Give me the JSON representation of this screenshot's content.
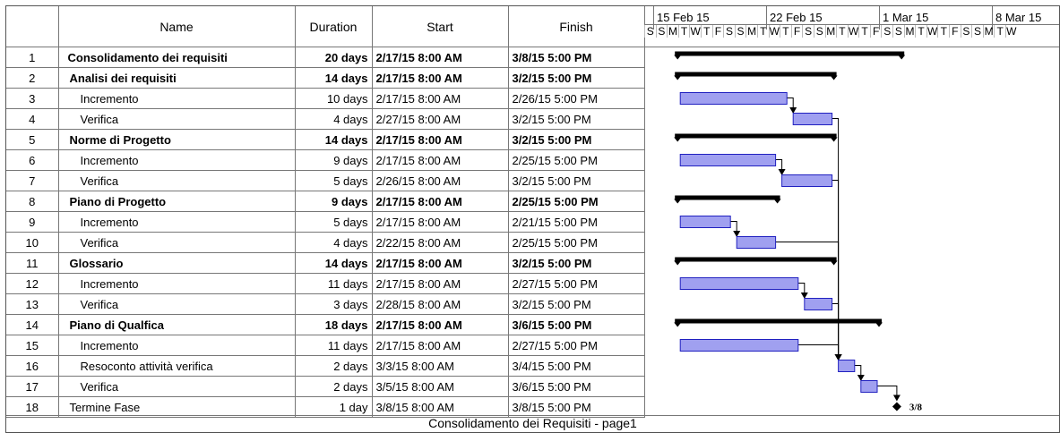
{
  "columns": {
    "name": "Name",
    "duration": "Duration",
    "start": "Start",
    "finish": "Finish"
  },
  "timescale": {
    "weeks": [
      "15 Feb 15",
      "22 Feb 15",
      "1 Mar 15",
      "8 Mar 15"
    ],
    "day_letters": [
      "S",
      "S",
      "M",
      "T",
      "W",
      "T",
      "F",
      "S",
      "S",
      "M",
      "T",
      "W",
      "T",
      "F",
      "S",
      "S",
      "M",
      "T",
      "W",
      "T",
      "F",
      "S",
      "S",
      "M",
      "T",
      "W",
      "T",
      "F",
      "S",
      "S",
      "M",
      "T",
      "W"
    ]
  },
  "tasks": [
    {
      "id": "1",
      "name": "Consolidamento dei requisiti",
      "duration": "20 days",
      "start": "2/17/15 8:00 AM",
      "finish": "3/8/15 5:00 PM",
      "level": 0,
      "summary": true,
      "start_day": 2,
      "end_day": 21
    },
    {
      "id": "2",
      "name": "Analisi dei requisiti",
      "duration": "14 days",
      "start": "2/17/15 8:00 AM",
      "finish": "3/2/15 5:00 PM",
      "level": 1,
      "summary": true,
      "start_day": 2,
      "end_day": 15
    },
    {
      "id": "3",
      "name": "Incremento",
      "duration": "10 days",
      "start": "2/17/15 8:00 AM",
      "finish": "2/26/15 5:00 PM",
      "level": 2,
      "summary": false,
      "start_day": 2,
      "end_day": 11,
      "successor": "4"
    },
    {
      "id": "4",
      "name": "Verifica",
      "duration": "4 days",
      "start": "2/27/15 8:00 AM",
      "finish": "3/2/15 5:00 PM",
      "level": 2,
      "summary": false,
      "start_day": 12,
      "end_day": 15,
      "successor": "16"
    },
    {
      "id": "5",
      "name": "Norme di Progetto",
      "duration": "14 days",
      "start": "2/17/15 8:00 AM",
      "finish": "3/2/15 5:00 PM",
      "level": 1,
      "summary": true,
      "start_day": 2,
      "end_day": 15
    },
    {
      "id": "6",
      "name": "Incremento",
      "duration": "9 days",
      "start": "2/17/15 8:00 AM",
      "finish": "2/25/15 5:00 PM",
      "level": 2,
      "summary": false,
      "start_day": 2,
      "end_day": 10,
      "successor": "7"
    },
    {
      "id": "7",
      "name": "Verifica",
      "duration": "5 days",
      "start": "2/26/15 8:00 AM",
      "finish": "3/2/15 5:00 PM",
      "level": 2,
      "summary": false,
      "start_day": 11,
      "end_day": 15,
      "successor": "16"
    },
    {
      "id": "8",
      "name": "Piano di Progetto",
      "duration": "9 days",
      "start": "2/17/15 8:00 AM",
      "finish": "2/25/15 5:00 PM",
      "level": 1,
      "summary": true,
      "start_day": 2,
      "end_day": 10
    },
    {
      "id": "9",
      "name": "Incremento",
      "duration": "5 days",
      "start": "2/17/15 8:00 AM",
      "finish": "2/21/15 5:00 PM",
      "level": 2,
      "summary": false,
      "start_day": 2,
      "end_day": 6,
      "successor": "10"
    },
    {
      "id": "10",
      "name": "Verifica",
      "duration": "4 days",
      "start": "2/22/15 8:00 AM",
      "finish": "2/25/15 5:00 PM",
      "level": 2,
      "summary": false,
      "start_day": 7,
      "end_day": 10,
      "successor": "16"
    },
    {
      "id": "11",
      "name": "Glossario",
      "duration": "14 days",
      "start": "2/17/15 8:00 AM",
      "finish": "3/2/15 5:00 PM",
      "level": 1,
      "summary": true,
      "start_day": 2,
      "end_day": 15
    },
    {
      "id": "12",
      "name": "Incremento",
      "duration": "11 days",
      "start": "2/17/15 8:00 AM",
      "finish": "2/27/15 5:00 PM",
      "level": 2,
      "summary": false,
      "start_day": 2,
      "end_day": 12,
      "successor": "13"
    },
    {
      "id": "13",
      "name": "Verifica",
      "duration": "3 days",
      "start": "2/28/15 8:00 AM",
      "finish": "3/2/15 5:00 PM",
      "level": 2,
      "summary": false,
      "start_day": 13,
      "end_day": 15,
      "successor": "16"
    },
    {
      "id": "14",
      "name": "Piano di Qualfica",
      "duration": "18 days",
      "start": "2/17/15 8:00 AM",
      "finish": "3/6/15 5:00 PM",
      "level": 1,
      "summary": true,
      "start_day": 2,
      "end_day": 19
    },
    {
      "id": "15",
      "name": "Incremento",
      "duration": "11 days",
      "start": "2/17/15 8:00 AM",
      "finish": "2/27/15 5:00 PM",
      "level": 2,
      "summary": false,
      "start_day": 2,
      "end_day": 12,
      "successor": "16"
    },
    {
      "id": "16",
      "name": "Resoconto attività verifica",
      "duration": "2 days",
      "start": "3/3/15 8:00 AM",
      "finish": "3/4/15 5:00 PM",
      "level": 2,
      "summary": false,
      "start_day": 16,
      "end_day": 17,
      "successor": "17"
    },
    {
      "id": "17",
      "name": "Verifica",
      "duration": "2 days",
      "start": "3/5/15 8:00 AM",
      "finish": "3/6/15 5:00 PM",
      "level": 2,
      "summary": false,
      "start_day": 18,
      "end_day": 19,
      "successor": "18"
    },
    {
      "id": "18",
      "name": "Termine Fase",
      "duration": "1 day",
      "start": "3/8/15 8:00 AM",
      "finish": "3/8/15 5:00 PM",
      "level": 1,
      "summary": false,
      "milestone": true,
      "start_day": 21,
      "end_day": 21,
      "milestone_label": "3/8"
    }
  ],
  "footer": "Consolidamento dei Requisiti  -  page1",
  "colors": {
    "task_fill": "#a0a0f0",
    "task_stroke": "#2020c0",
    "summary": "#000000",
    "link": "#000000"
  }
}
